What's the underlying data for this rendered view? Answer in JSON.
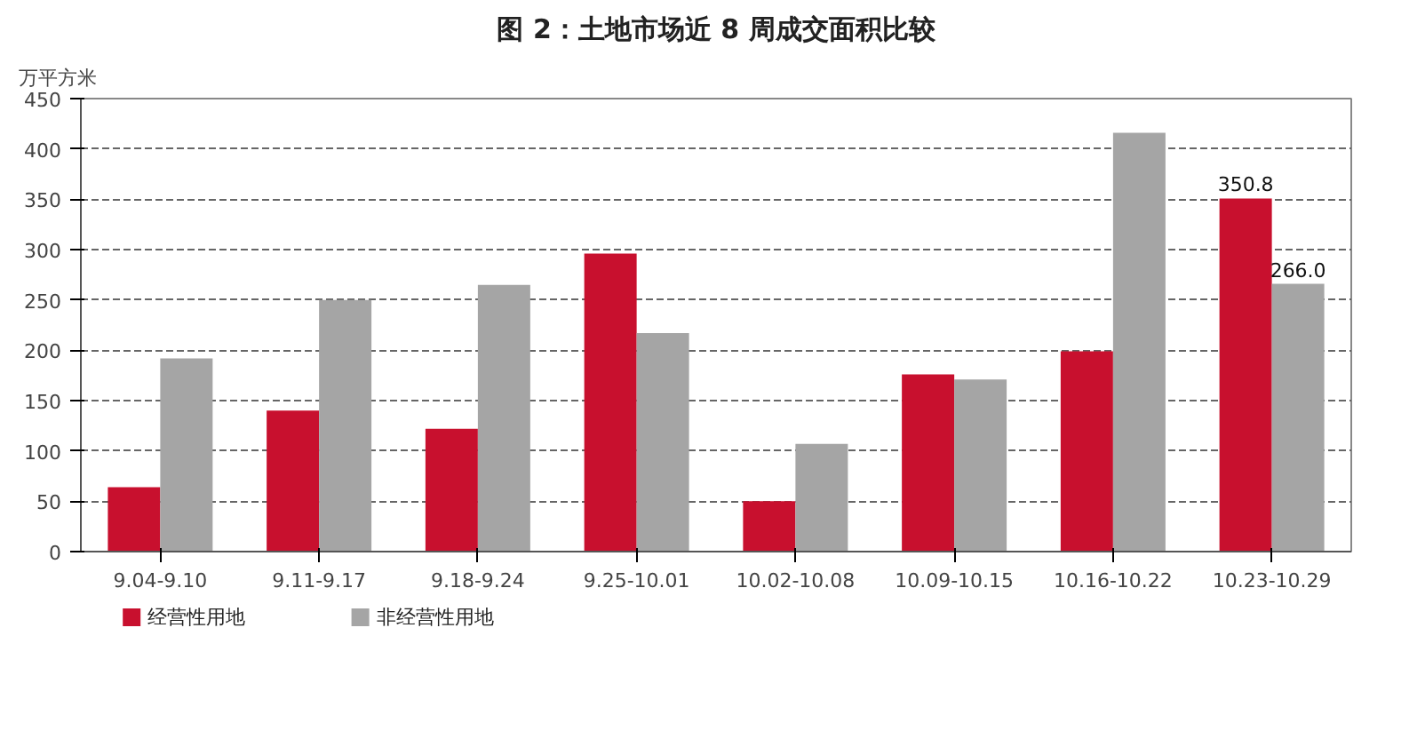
{
  "chart_data": {
    "type": "bar",
    "title": "图 2：土地市场近 8 周成交面积比较",
    "ylabel": "万平方米",
    "categories": [
      "9.04-9.10",
      "9.11-9.17",
      "9.18-9.24",
      "9.25-10.01",
      "10.02-10.08",
      "10.09-10.15",
      "10.16-10.22",
      "10.23-10.29"
    ],
    "series": [
      {
        "name": "经营性用地",
        "color": "#c8102e",
        "values": [
          64,
          140,
          122,
          296,
          50,
          176,
          199,
          350.8
        ],
        "value_labels": [
          null,
          null,
          null,
          null,
          null,
          null,
          null,
          "350.8"
        ]
      },
      {
        "name": "非经营性用地",
        "color": "#a5a5a5",
        "values": [
          192,
          250,
          265,
          217,
          107,
          171,
          416,
          266.0
        ],
        "value_labels": [
          null,
          null,
          null,
          null,
          null,
          null,
          null,
          "266.0"
        ]
      }
    ],
    "ylim": [
      0,
      450
    ],
    "yticks": [
      0,
      50,
      100,
      150,
      200,
      250,
      300,
      350,
      400,
      450
    ],
    "grid": "y",
    "legend": "bottom left"
  }
}
